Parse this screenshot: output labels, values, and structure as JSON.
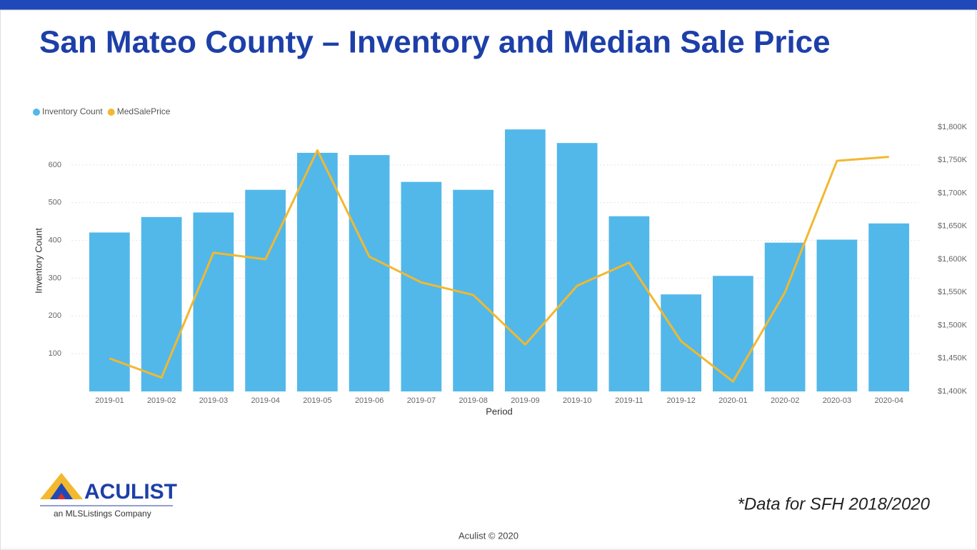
{
  "chart_data": {
    "type": "bar",
    "title": "San Mateo County – Inventory and Median Sale Price",
    "x_label": "Period",
    "y_label": "Inventory Count",
    "categories": [
      "2019-01",
      "2019-02",
      "2019-03",
      "2019-04",
      "2019-05",
      "2019-06",
      "2019-07",
      "2019-08",
      "2019-09",
      "2019-10",
      "2019-11",
      "2019-12",
      "2020-01",
      "2020-02",
      "2020-03",
      "2020-04"
    ],
    "series": [
      {
        "name": "Inventory Count",
        "type": "bar",
        "color": "#52b8ea",
        "values": [
          421,
          462,
          474,
          534,
          632,
          626,
          555,
          534,
          694,
          658,
          464,
          257,
          306,
          394,
          402,
          445
        ]
      },
      {
        "name": "MedSalePrice",
        "type": "line",
        "axis": "y2",
        "color": "#f2b830",
        "values": [
          1450000,
          1421000,
          1610000,
          1600000,
          1765000,
          1604000,
          1565000,
          1546000,
          1471000,
          1560000,
          1595000,
          1476000,
          1415000,
          1550000,
          1749000,
          1755000
        ]
      }
    ],
    "ylim": [
      0,
      700
    ],
    "yticks": [
      100,
      200,
      300,
      400,
      500,
      600
    ],
    "y2lim": [
      1400000,
      1800000
    ],
    "y2ticks": [
      {
        "value": 1400000,
        "label": "$1,400K"
      },
      {
        "value": 1450000,
        "label": "$1,450K"
      },
      {
        "value": 1500000,
        "label": "$1,500K"
      },
      {
        "value": 1550000,
        "label": "$1,550K"
      },
      {
        "value": 1600000,
        "label": "$1,600K"
      },
      {
        "value": 1650000,
        "label": "$1,650K"
      },
      {
        "value": 1700000,
        "label": "$1,700K"
      },
      {
        "value": 1750000,
        "label": "$1,750K"
      },
      {
        "value": 1800000,
        "label": "$1,800K"
      }
    ],
    "grid": true,
    "legend": "top-left"
  },
  "logo": {
    "name": "ACULIST",
    "tagline": "an MLSListings Company"
  },
  "note": "*Data for SFH 2018/2020",
  "footer": "Aculist © 2020"
}
